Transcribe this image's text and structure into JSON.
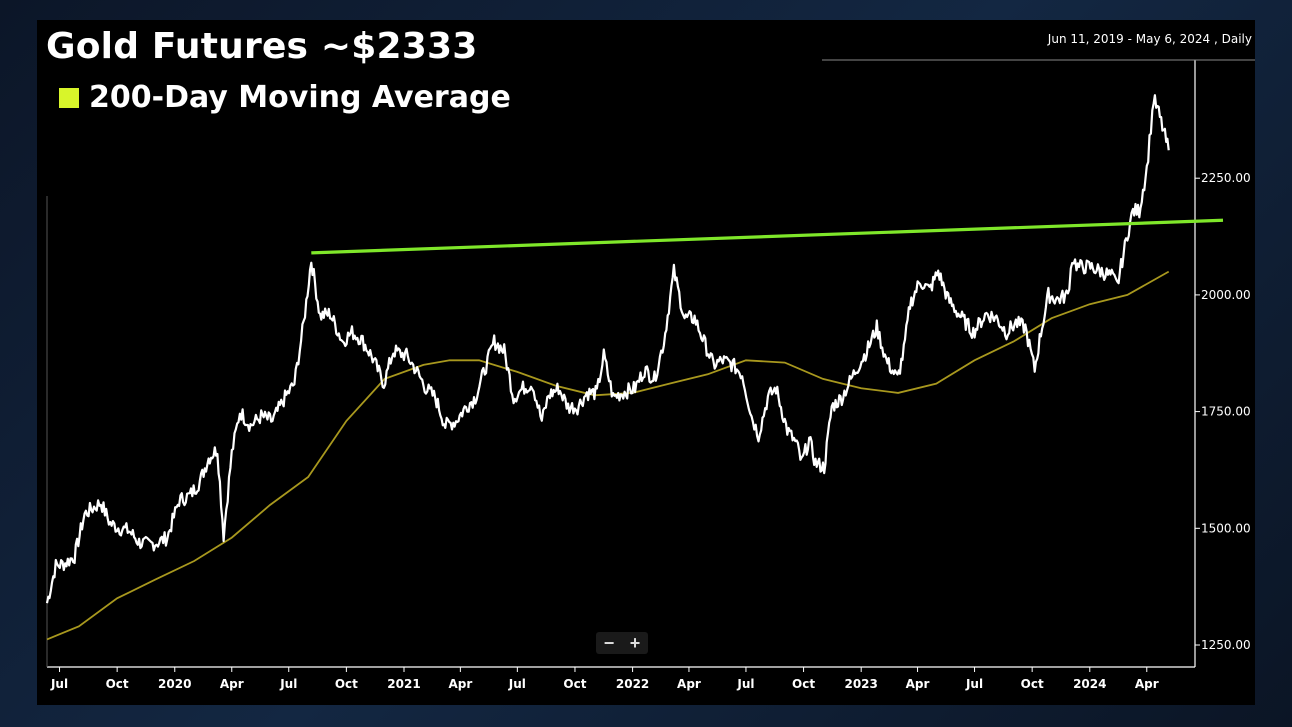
{
  "header": {
    "title": "Gold Futures ~$2333",
    "range_label": "Jun 11, 2019 - May 6, 2024 , Daily"
  },
  "zoom": {
    "minus": "−",
    "plus": "+"
  },
  "colors": {
    "price": "#ffffff",
    "ma": "#a8981e",
    "trendline": "#7fe72a",
    "legend_swatch": "#d8f52a"
  },
  "chart_data": {
    "type": "line",
    "title": "Gold Futures ~$2333",
    "x_range": [
      "2019-06-11",
      "2024-05-06"
    ],
    "ylim": [
      1250,
      2450
    ],
    "y_ticks": [
      1250,
      1500,
      1750,
      2000,
      2250
    ],
    "y_tick_labels": [
      "1250.00",
      "1500.00",
      "1750.00",
      "2000.00",
      "2250.00"
    ],
    "x_ticks": [
      {
        "date": "2019-07-01",
        "label": "Jul"
      },
      {
        "date": "2019-10-01",
        "label": "Oct"
      },
      {
        "date": "2020-01-01",
        "label": "2020"
      },
      {
        "date": "2020-04-01",
        "label": "Apr"
      },
      {
        "date": "2020-07-01",
        "label": "Jul"
      },
      {
        "date": "2020-10-01",
        "label": "Oct"
      },
      {
        "date": "2021-01-01",
        "label": "2021"
      },
      {
        "date": "2021-04-01",
        "label": "Apr"
      },
      {
        "date": "2021-07-01",
        "label": "Jul"
      },
      {
        "date": "2021-10-01",
        "label": "Oct"
      },
      {
        "date": "2022-01-01",
        "label": "2022"
      },
      {
        "date": "2022-04-01",
        "label": "Apr"
      },
      {
        "date": "2022-07-01",
        "label": "Jul"
      },
      {
        "date": "2022-10-01",
        "label": "Oct"
      },
      {
        "date": "2023-01-01",
        "label": "2023"
      },
      {
        "date": "2023-04-01",
        "label": "Apr"
      },
      {
        "date": "2023-07-01",
        "label": "Jul"
      },
      {
        "date": "2023-10-01",
        "label": "Oct"
      },
      {
        "date": "2024-01-01",
        "label": "2024"
      },
      {
        "date": "2024-04-01",
        "label": "Apr"
      }
    ],
    "series": [
      {
        "name": "",
        "x": [
          "2019-06-11",
          "2019-06-25",
          "2019-07-10",
          "2019-07-25",
          "2019-08-10",
          "2019-08-25",
          "2019-09-05",
          "2019-09-20",
          "2019-10-05",
          "2019-10-20",
          "2019-11-05",
          "2019-11-20",
          "2019-12-05",
          "2019-12-20",
          "2020-01-08",
          "2020-01-25",
          "2020-02-10",
          "2020-02-24",
          "2020-03-09",
          "2020-03-19",
          "2020-04-01",
          "2020-04-14",
          "2020-05-01",
          "2020-05-18",
          "2020-06-05",
          "2020-06-25",
          "2020-07-10",
          "2020-07-25",
          "2020-08-06",
          "2020-08-20",
          "2020-09-05",
          "2020-09-25",
          "2020-10-10",
          "2020-10-25",
          "2020-11-10",
          "2020-11-30",
          "2020-12-15",
          "2021-01-05",
          "2021-01-20",
          "2021-02-05",
          "2021-02-20",
          "2021-03-08",
          "2021-03-25",
          "2021-04-10",
          "2021-04-25",
          "2021-05-10",
          "2021-05-25",
          "2021-06-10",
          "2021-06-25",
          "2021-07-10",
          "2021-07-25",
          "2021-08-09",
          "2021-08-20",
          "2021-09-05",
          "2021-09-20",
          "2021-10-05",
          "2021-10-20",
          "2021-11-05",
          "2021-11-16",
          "2021-12-01",
          "2021-12-15",
          "2022-01-05",
          "2022-01-20",
          "2022-02-05",
          "2022-02-20",
          "2022-03-08",
          "2022-03-25",
          "2022-04-10",
          "2022-04-25",
          "2022-05-10",
          "2022-05-25",
          "2022-06-10",
          "2022-06-25",
          "2022-07-10",
          "2022-07-21",
          "2022-08-05",
          "2022-08-18",
          "2022-09-05",
          "2022-09-20",
          "2022-09-28",
          "2022-10-10",
          "2022-10-20",
          "2022-11-03",
          "2022-11-15",
          "2022-12-01",
          "2022-12-20",
          "2023-01-10",
          "2023-01-26",
          "2023-02-10",
          "2023-02-28",
          "2023-03-10",
          "2023-03-20",
          "2023-04-05",
          "2023-04-20",
          "2023-05-04",
          "2023-05-20",
          "2023-06-05",
          "2023-06-29",
          "2023-07-20",
          "2023-08-05",
          "2023-08-21",
          "2023-09-05",
          "2023-09-20",
          "2023-10-05",
          "2023-10-15",
          "2023-10-27",
          "2023-11-10",
          "2023-11-27",
          "2023-12-04",
          "2023-12-13",
          "2024-01-02",
          "2024-01-20",
          "2024-02-05",
          "2024-02-14",
          "2024-03-01",
          "2024-03-10",
          "2024-03-20",
          "2024-04-01",
          "2024-04-12",
          "2024-04-20",
          "2024-04-30",
          "2024-05-06"
        ],
        "values": [
          1340,
          1420,
          1425,
          1440,
          1530,
          1545,
          1555,
          1510,
          1500,
          1495,
          1470,
          1465,
          1470,
          1480,
          1560,
          1570,
          1600,
          1650,
          1670,
          1485,
          1660,
          1750,
          1720,
          1740,
          1730,
          1780,
          1810,
          1940,
          2075,
          1955,
          1960,
          1900,
          1920,
          1905,
          1870,
          1810,
          1880,
          1870,
          1840,
          1800,
          1780,
          1720,
          1730,
          1760,
          1780,
          1840,
          1900,
          1880,
          1780,
          1800,
          1810,
          1730,
          1785,
          1800,
          1760,
          1760,
          1790,
          1790,
          1870,
          1780,
          1790,
          1800,
          1840,
          1820,
          1900,
          2050,
          1950,
          1950,
          1900,
          1850,
          1860,
          1850,
          1830,
          1740,
          1700,
          1780,
          1800,
          1710,
          1680,
          1640,
          1690,
          1640,
          1630,
          1760,
          1780,
          1830,
          1880,
          1930,
          1860,
          1820,
          1880,
          1980,
          2030,
          2010,
          2050,
          1990,
          1960,
          1920,
          1960,
          1950,
          1920,
          1940,
          1930,
          1840,
          1920,
          2000,
          1990,
          2000,
          2080,
          2060,
          2060,
          2050,
          2040,
          2020,
          2130,
          2180,
          2180,
          2270,
          2420,
          2390,
          2340,
          2310
        ]
      },
      {
        "name": "200-Day Moving Average",
        "x": [
          "2019-06-11",
          "2019-08-01",
          "2019-10-01",
          "2019-12-01",
          "2020-02-01",
          "2020-04-01",
          "2020-06-01",
          "2020-08-01",
          "2020-10-01",
          "2020-12-01",
          "2021-02-01",
          "2021-03-15",
          "2021-05-01",
          "2021-07-01",
          "2021-09-01",
          "2021-11-01",
          "2022-01-01",
          "2022-03-01",
          "2022-05-01",
          "2022-07-01",
          "2022-09-01",
          "2022-11-01",
          "2023-01-01",
          "2023-03-01",
          "2023-05-01",
          "2023-07-01",
          "2023-09-01",
          "2023-11-01",
          "2024-01-01",
          "2024-03-01",
          "2024-05-06"
        ],
        "values": [
          1262,
          1290,
          1350,
          1390,
          1430,
          1480,
          1550,
          1610,
          1730,
          1820,
          1850,
          1860,
          1860,
          1835,
          1805,
          1785,
          1790,
          1810,
          1830,
          1860,
          1855,
          1820,
          1800,
          1790,
          1810,
          1860,
          1900,
          1950,
          1980,
          2000,
          2050
        ]
      }
    ],
    "trendline": {
      "x": [
        "2020-08-06",
        "2024-06-01"
      ],
      "y": [
        2090,
        2162
      ]
    },
    "legend": {
      "label": "200-Day Moving Average",
      "position": "top-left"
    },
    "grid": false
  }
}
